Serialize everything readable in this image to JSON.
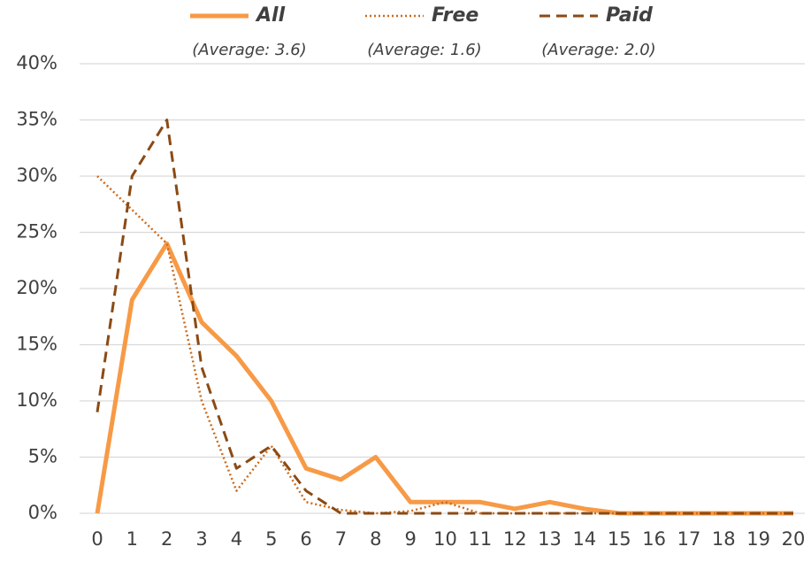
{
  "chart_data": {
    "type": "line",
    "categories": [
      "0",
      "1",
      "2",
      "3",
      "4",
      "5",
      "6",
      "7",
      "8",
      "9",
      "10",
      "11",
      "12",
      "13",
      "14",
      "15",
      "16",
      "17",
      "18",
      "19",
      "20"
    ],
    "series": [
      {
        "name": "All",
        "average_label": "(Average: 3.6)",
        "color": "#f79a46",
        "dash": "solid",
        "values": [
          0,
          19,
          24,
          17,
          14,
          10,
          4,
          3,
          5,
          1,
          1,
          1,
          0.4,
          1,
          0.4,
          0,
          0,
          0,
          0,
          0,
          0
        ]
      },
      {
        "name": "Free",
        "average_label": "(Average: 1.6)",
        "color": "#cc6b1c",
        "dash": "dotted",
        "values": [
          30,
          27,
          24,
          10,
          2,
          6,
          1,
          0.3,
          0,
          0.2,
          1,
          0,
          0,
          0,
          0,
          0,
          0,
          0,
          0,
          0,
          0
        ]
      },
      {
        "name": "Paid",
        "average_label": "(Average: 2.0)",
        "color": "#8b4a14",
        "dash": "dashed",
        "values": [
          9,
          30,
          35,
          13,
          4,
          6,
          2,
          0,
          0,
          0,
          0,
          0,
          0,
          0,
          0,
          0,
          0,
          0,
          0,
          0,
          0
        ]
      }
    ],
    "ylim": [
      0,
      40
    ],
    "yticks": [
      {
        "value": 0,
        "label": "0%"
      },
      {
        "value": 5,
        "label": "5%"
      },
      {
        "value": 10,
        "label": "10%"
      },
      {
        "value": 15,
        "label": "15%"
      },
      {
        "value": 20,
        "label": "20%"
      },
      {
        "value": 25,
        "label": "25%"
      },
      {
        "value": 30,
        "label": "30%"
      },
      {
        "value": 35,
        "label": "35%"
      },
      {
        "value": 40,
        "label": "40%"
      }
    ],
    "grid": true,
    "legend": "top"
  }
}
